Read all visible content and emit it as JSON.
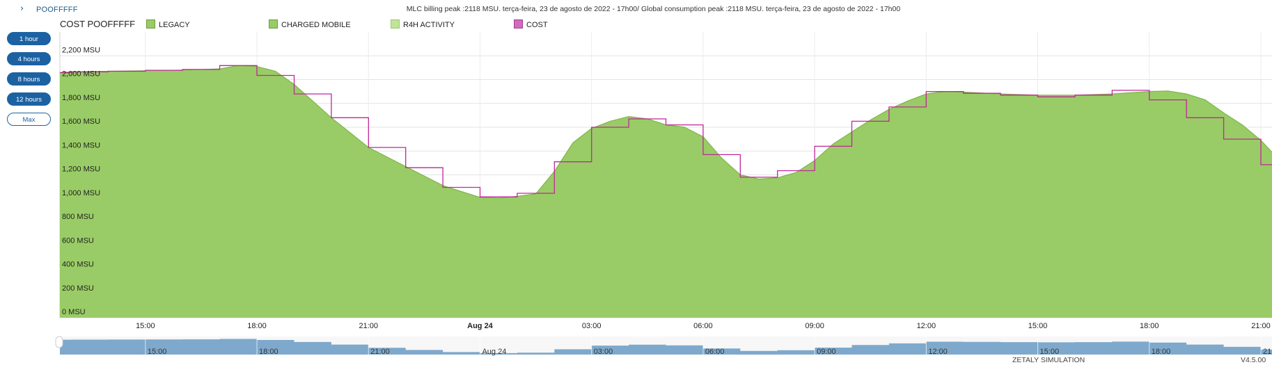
{
  "header": {
    "system_name": "POOFFFFF",
    "peak_text": "MLC billing peak :2118 MSU. terça-feira, 23 de agosto de 2022 - 17h00/ Global consumption peak :2118 MSU. terça-feira, 23 de agosto de 2022 - 17h00"
  },
  "range_buttons": [
    "1 hour",
    "4 hours",
    "8 hours",
    "12 hours",
    "Max"
  ],
  "active_range": "Max",
  "footer": {
    "left": "ZETALY SIMULATION",
    "right": "V4.5.00"
  },
  "colors": {
    "area": "#99cc66",
    "area_line": "#7fb548",
    "cost": "#c0269a",
    "navigator": "#7ea9cc",
    "button": "#1c62a3"
  },
  "chart_data": {
    "type": "area",
    "title": "COST POOFFFFF",
    "ylabel": "MSU",
    "ylim": [
      0,
      2400
    ],
    "yticks": [
      0,
      200,
      400,
      600,
      800,
      1000,
      1200,
      1400,
      1600,
      1800,
      2000,
      2200
    ],
    "ytick_labels": [
      "0 MSU",
      "200 MSU",
      "400 MSU",
      "600 MSU",
      "800 MSU",
      "1,000 MSU",
      "1,200 MSU",
      "1,400 MSU",
      "1,600 MSU",
      "1,800 MSU",
      "2,000 MSU",
      "2,200 MSU"
    ],
    "x_range_hours": [
      12.7,
      45.3
    ],
    "x_unit": "hours since 2022-08-23 00:00",
    "xticks": [
      15,
      18,
      21,
      24,
      27,
      30,
      33,
      36,
      39,
      42,
      45
    ],
    "xtick_labels": [
      "15:00",
      "18:00",
      "21:00",
      "Aug 24",
      "03:00",
      "06:00",
      "09:00",
      "12:00",
      "15:00",
      "18:00",
      "21:00"
    ],
    "legend": [
      {
        "name": "LEGACY",
        "color": "#99cc66"
      },
      {
        "name": "CHARGED MOBILE",
        "color": "#99cc66"
      },
      {
        "name": "R4H ACTIVITY",
        "color": "#c2e39a"
      },
      {
        "name": "COST",
        "color": "#d36bbd"
      }
    ],
    "series": [
      {
        "name": "LEGACY",
        "x": [
          12.7,
          13,
          14,
          15,
          16,
          17,
          17.5,
          18,
          18.5,
          19,
          20,
          21,
          22,
          23,
          24,
          24.5,
          25,
          25.5,
          26,
          26.5,
          27,
          27.5,
          28,
          28.5,
          29,
          29.5,
          30,
          30.5,
          31,
          31.5,
          32,
          32.5,
          33,
          33.5,
          34,
          34.5,
          35,
          35.5,
          36,
          36.5,
          37,
          38,
          39,
          40,
          41,
          42,
          42.5,
          43,
          43.5,
          44,
          44.5,
          45,
          45.3
        ],
        "y": [
          2060,
          2065,
          2070,
          2075,
          2080,
          2090,
          2118,
          2110,
          2070,
          1960,
          1680,
          1430,
          1270,
          1110,
          1010,
          1005,
          1020,
          1040,
          1230,
          1470,
          1590,
          1650,
          1690,
          1670,
          1620,
          1600,
          1520,
          1340,
          1200,
          1165,
          1175,
          1220,
          1320,
          1460,
          1560,
          1660,
          1750,
          1820,
          1880,
          1900,
          1895,
          1880,
          1870,
          1870,
          1880,
          1900,
          1905,
          1880,
          1830,
          1720,
          1620,
          1490,
          1390
        ]
      },
      {
        "name": "COST",
        "x": [
          12.7,
          13,
          14,
          15,
          16,
          17,
          18,
          19,
          20,
          21,
          22,
          23,
          24,
          25,
          26,
          27,
          28,
          29,
          30,
          31,
          32,
          33,
          34,
          35,
          36,
          37,
          38,
          39,
          40,
          41,
          42,
          43,
          44,
          45,
          45.3
        ],
        "y": [
          2058,
          2065,
          2070,
          2078,
          2085,
          2118,
          2035,
          1880,
          1680,
          1430,
          1260,
          1095,
          1015,
          1045,
          1310,
          1600,
          1670,
          1620,
          1370,
          1180,
          1235,
          1440,
          1650,
          1770,
          1900,
          1885,
          1870,
          1855,
          1870,
          1910,
          1830,
          1680,
          1500,
          1285,
          1285
        ]
      }
    ]
  }
}
